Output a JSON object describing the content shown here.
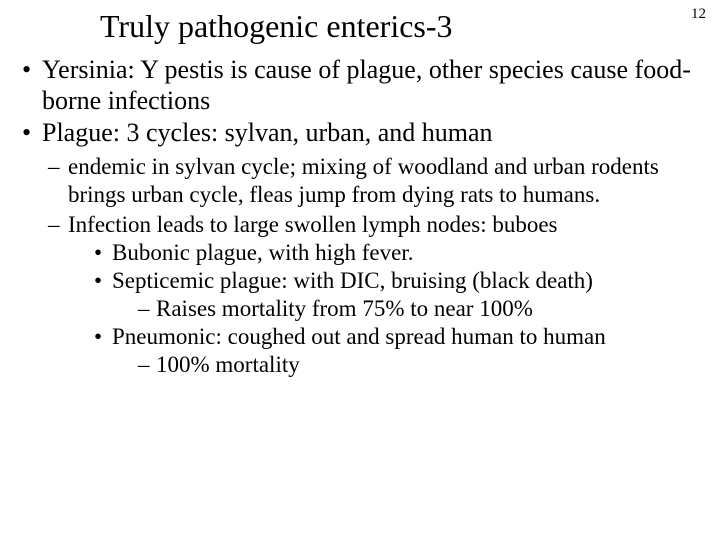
{
  "page_number": "12",
  "title": "Truly pathogenic enterics-3",
  "bullets": {
    "b1": "Yersinia:  Y pestis is cause of plague, other species cause food-borne infections",
    "b2": "Plague: 3 cycles: sylvan, urban, and human",
    "b2_1": "endemic in sylvan cycle; mixing of woodland and urban rodents brings urban cycle, fleas jump from dying rats to humans.",
    "b2_2": "Infection leads to large swollen lymph nodes: buboes",
    "b2_2_1": "Bubonic plague, with high fever.",
    "b2_2_2": "Septicemic plague: with DIC, bruising (black death)",
    "b2_2_2_1": "Raises mortality from 75% to near 100%",
    "b2_2_3": "Pneumonic: coughed out and spread human to human",
    "b2_2_3_1": "100% mortality"
  },
  "style": {
    "background_color": "#ffffff",
    "text_color": "#000000",
    "font_family": "Times New Roman",
    "title_fontsize": 32,
    "level1_fontsize": 26,
    "level2_fontsize": 23,
    "level3_fontsize": 23,
    "level4_fontsize": 23
  }
}
